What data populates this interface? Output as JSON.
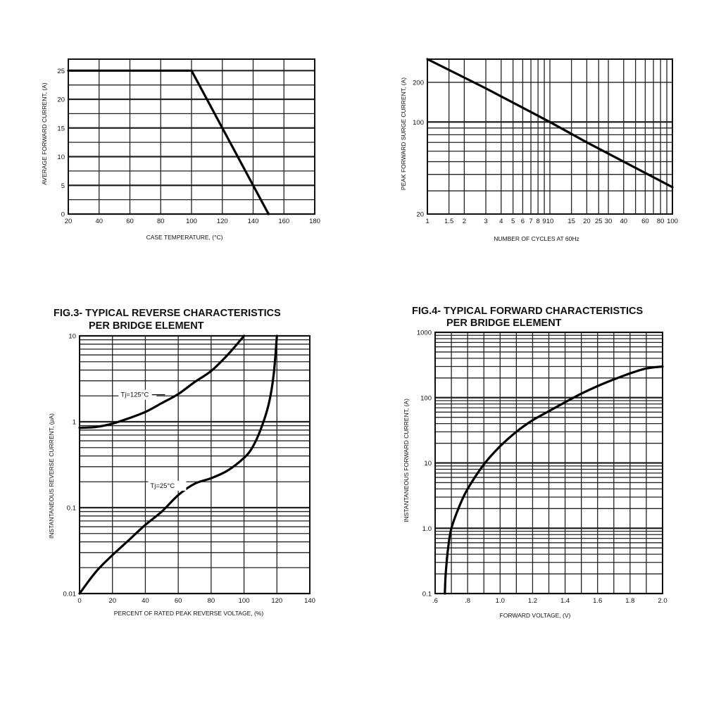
{
  "chart_data": [
    {
      "id": "fig1",
      "type": "line",
      "title": "",
      "xlabel": "CASE TEMPERATURE, (°C)",
      "ylabel": "AVERAGE FORWARD CURRENT, (A)",
      "xscale": "linear",
      "yscale": "linear",
      "xlim": [
        20,
        180
      ],
      "ylim": [
        0,
        27
      ],
      "xticks": [
        20,
        40,
        60,
        80,
        100,
        120,
        140,
        160,
        180
      ],
      "xtick_labels": [
        "20",
        "40",
        "60",
        "80",
        "100",
        "120",
        "140",
        "160",
        "180"
      ],
      "yticks": [
        0,
        5,
        10,
        15,
        20,
        25
      ],
      "ytick_labels": [
        "0",
        "5",
        "10",
        "15",
        "20",
        "25"
      ],
      "grid": true,
      "series": [
        {
          "x": [
            20,
            100,
            150
          ],
          "y": [
            25,
            25,
            0
          ]
        }
      ],
      "annotations": []
    },
    {
      "id": "fig2",
      "type": "line",
      "title": "",
      "xlabel": "NUMBER OF CYCLES AT 60Hz",
      "ylabel": "PEAK FORWARD SURGE CURRENT, (A)",
      "xscale": "log",
      "yscale": "log",
      "xlim": [
        1,
        100
      ],
      "ylim": [
        20,
        300
      ],
      "xticks": [
        1,
        1.5,
        2,
        3,
        4,
        5,
        6,
        7,
        8,
        9,
        10,
        15,
        20,
        25,
        30,
        40,
        60,
        80,
        100
      ],
      "xtick_labels": [
        "1",
        "1.5",
        "2",
        "3",
        "4",
        "5",
        "6",
        "7",
        "8",
        "9",
        "10",
        "15",
        "20",
        "25",
        "30",
        "40",
        "60",
        "80",
        "100"
      ],
      "yticks": [
        20,
        100,
        200
      ],
      "ytick_labels": [
        "20",
        "100",
        "200"
      ],
      "grid": true,
      "series": [
        {
          "x": [
            1,
            3,
            10,
            20,
            100
          ],
          "y": [
            300,
            180,
            100,
            70,
            32
          ]
        }
      ],
      "annotations": []
    },
    {
      "id": "fig3",
      "type": "line",
      "title": "FIG.3- TYPICAL REVERSE CHARACTERISTICS",
      "subtitle": "PER BRIDGE ELEMENT",
      "xlabel": "PERCENT OF RATED PEAK REVERSE VOLTAGE, (%)",
      "ylabel": "INSTANTANEOUS REVERSE CURRENT, (μA)",
      "xscale": "linear",
      "yscale": "log",
      "xlim": [
        0,
        140
      ],
      "ylim": [
        0.01,
        10
      ],
      "xticks": [
        0,
        20,
        40,
        60,
        80,
        100,
        120,
        140
      ],
      "xtick_labels": [
        "0",
        "20",
        "40",
        "60",
        "80",
        "100",
        "120",
        "140"
      ],
      "yticks": [
        0.01,
        0.1,
        1,
        10
      ],
      "ytick_labels": [
        "0.01",
        "0.1",
        "1",
        "10"
      ],
      "grid": true,
      "series": [
        {
          "name": "Tj=125°C",
          "x": [
            0,
            10,
            20,
            30,
            40,
            50,
            60,
            70,
            80,
            90,
            100
          ],
          "y": [
            0.85,
            0.87,
            0.95,
            1.1,
            1.3,
            1.65,
            2.1,
            2.9,
            3.9,
            6.0,
            10
          ]
        },
        {
          "name": "Tj=25°C",
          "x": [
            0,
            10,
            20,
            30,
            40,
            50,
            60,
            70,
            80,
            90,
            100,
            105,
            110,
            115,
            118,
            120
          ],
          "y": [
            0.01,
            0.018,
            0.028,
            0.042,
            0.063,
            0.09,
            0.14,
            0.19,
            0.22,
            0.27,
            0.38,
            0.5,
            0.8,
            1.6,
            3.5,
            10
          ]
        }
      ],
      "annotations": [
        {
          "text": "Tj=125°C",
          "series": 0
        },
        {
          "text": "Tj=25°C",
          "series": 1
        }
      ]
    },
    {
      "id": "fig4",
      "type": "line",
      "title": "FIG.4- TYPICAL FORWARD CHARACTERISTICS",
      "subtitle": "PER BRIDGE ELEMENT",
      "xlabel": "FORWARD VOLTAGE, (V)",
      "ylabel": "INSTANTANEOUS FORWARD CURRENT, (A)",
      "xscale": "linear",
      "yscale": "log",
      "xlim": [
        0.6,
        2.0
      ],
      "ylim": [
        0.1,
        1000
      ],
      "xticks": [
        0.6,
        0.8,
        1.0,
        1.2,
        1.4,
        1.6,
        1.8,
        2.0
      ],
      "xtick_labels": [
        ".6",
        ".8",
        "1.0",
        "1.2",
        "1.4",
        "1.6",
        "1.8",
        "2.0"
      ],
      "yticks": [
        0.1,
        1,
        10,
        100,
        1000
      ],
      "ytick_labels": [
        "0.1",
        "1.0",
        "10",
        "100",
        "1000"
      ],
      "grid": true,
      "series": [
        {
          "x": [
            0.66,
            0.665,
            0.68,
            0.7,
            0.75,
            0.8,
            0.9,
            1.0,
            1.1,
            1.2,
            1.3,
            1.4,
            1.5,
            1.6,
            1.7,
            1.8,
            1.9,
            2.0
          ],
          "y": [
            0.1,
            0.2,
            0.5,
            1.0,
            2.2,
            4.0,
            9.5,
            18,
            30,
            45,
            62,
            85,
            115,
            150,
            190,
            235,
            280,
            300
          ]
        }
      ],
      "annotations": []
    }
  ]
}
